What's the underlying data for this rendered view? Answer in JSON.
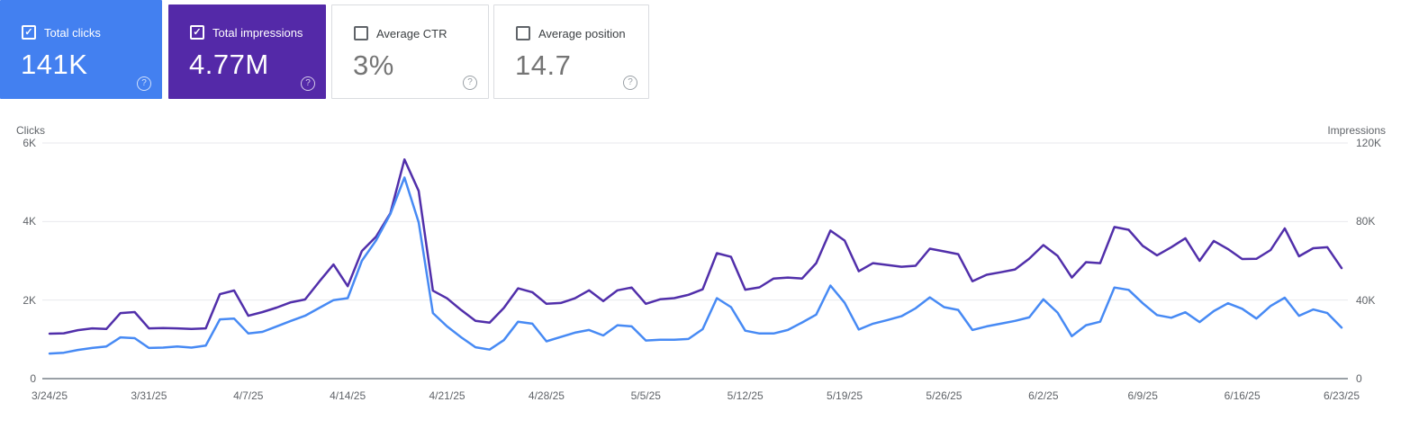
{
  "app": "Search Console Performance",
  "metric_cards": [
    {
      "label": "Total clicks",
      "value": "141K",
      "checked": true,
      "bg": "#4380f0",
      "fg": "#ffffff"
    },
    {
      "label": "Total impressions",
      "value": "4.77M",
      "checked": true,
      "bg": "#5429a8",
      "fg": "#ffffff"
    },
    {
      "label": "Average CTR",
      "value": "3%",
      "checked": false,
      "bg": "#ffffff",
      "fg": "#757575"
    },
    {
      "label": "Average position",
      "value": "14.7",
      "checked": false,
      "bg": "#ffffff",
      "fg": "#757575"
    }
  ],
  "icons": {
    "help": "?",
    "check": "✓"
  },
  "chart_data": {
    "type": "line",
    "grid": true,
    "legend_position": "none",
    "left_axis": {
      "label": "Clicks",
      "min": 0,
      "max": 6000,
      "ticks": [
        "0",
        "2K",
        "4K",
        "6K"
      ]
    },
    "right_axis": {
      "label": "Impressions",
      "min": 0,
      "max": 120000,
      "ticks": [
        "0",
        "40K",
        "80K",
        "120K"
      ]
    },
    "x_tick_labels": [
      "3/24/25",
      "3/31/25",
      "4/7/25",
      "4/14/25",
      "4/21/25",
      "4/28/25",
      "5/5/25",
      "5/12/25",
      "5/19/25",
      "5/26/25",
      "6/2/25",
      "6/9/25",
      "6/16/25",
      "6/23/25"
    ],
    "x_range_days": 92,
    "series": [
      {
        "name": "Total clicks",
        "axis": "left",
        "color": "#478af4",
        "values": [
          640,
          660,
          730,
          780,
          820,
          1050,
          1030,
          780,
          790,
          820,
          790,
          840,
          1510,
          1530,
          1150,
          1190,
          1330,
          1470,
          1600,
          1800,
          2000,
          2050,
          3000,
          3520,
          4190,
          5120,
          3980,
          1670,
          1330,
          1050,
          800,
          740,
          980,
          1450,
          1400,
          950,
          1060,
          1170,
          1240,
          1100,
          1360,
          1330,
          970,
          990,
          990,
          1010,
          1260,
          2050,
          1820,
          1220,
          1150,
          1150,
          1240,
          1430,
          1630,
          2370,
          1930,
          1250,
          1400,
          1490,
          1590,
          1790,
          2070,
          1820,
          1750,
          1240,
          1330,
          1400,
          1470,
          1560,
          2020,
          1680,
          1080,
          1360,
          1450,
          2320,
          2260,
          1920,
          1620,
          1550,
          1690,
          1440,
          1720,
          1920,
          1780,
          1530,
          1850,
          2060,
          1600,
          1760,
          1670,
          1300
        ]
      },
      {
        "name": "Total impressions",
        "axis": "right",
        "color": "#512faa",
        "values": [
          22900,
          23100,
          24700,
          25600,
          25300,
          33400,
          33900,
          25600,
          25800,
          25600,
          25300,
          25600,
          43000,
          44900,
          32000,
          33900,
          36200,
          38900,
          40300,
          49400,
          58100,
          47100,
          65000,
          72300,
          84200,
          111600,
          95600,
          44800,
          40900,
          34900,
          29400,
          28500,
          36000,
          46000,
          44000,
          38100,
          38500,
          40900,
          45000,
          39500,
          45000,
          46400,
          38100,
          40400,
          41000,
          42700,
          45500,
          63900,
          62000,
          45300,
          46500,
          51000,
          51500,
          51000,
          58800,
          75400,
          70300,
          54700,
          58800,
          57900,
          57000,
          57500,
          66200,
          64800,
          63400,
          49600,
          52900,
          54200,
          55600,
          61100,
          68000,
          62500,
          51500,
          59300,
          58800,
          77200,
          75800,
          67600,
          62800,
          66900,
          71500,
          60000,
          70100,
          66000,
          60900,
          61000,
          65500,
          76500,
          62300,
          66400,
          66900,
          56300
        ]
      }
    ],
    "gridline_color": "#e8eaed",
    "baseline_color": "#9aa0a6"
  }
}
